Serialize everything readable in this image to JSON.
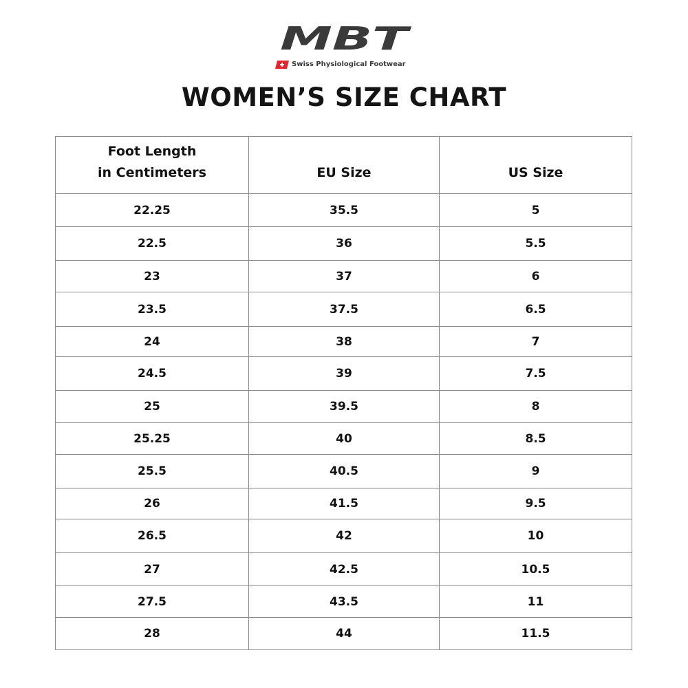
{
  "logo": {
    "brand": "MBT",
    "tagline": "Swiss Physiological Footwear",
    "colors": {
      "wordmark": "#3a3a3a",
      "flag": "#e3262b"
    }
  },
  "title": "WOMEN’S SIZE CHART",
  "table": {
    "headers": [
      "Foot Length\nin Centimeters",
      "EU Size",
      "US Size"
    ],
    "header_lines": [
      [
        "Foot Length",
        "in Centimeters"
      ],
      [
        "EU Size"
      ],
      [
        "US Size"
      ]
    ],
    "rows": [
      [
        "22.25",
        "35.5",
        "5"
      ],
      [
        "22.5",
        "36",
        "5.5"
      ],
      [
        "23",
        "37",
        "6"
      ],
      [
        "23.5",
        "37.5",
        "6.5"
      ],
      [
        "24",
        "38",
        "7"
      ],
      [
        "24.5",
        "39",
        "7.5"
      ],
      [
        "25",
        "39.5",
        "8"
      ],
      [
        "25.25",
        "40",
        "8.5"
      ],
      [
        "25.5",
        "40.5",
        "9"
      ],
      [
        "26",
        "41.5",
        "9.5"
      ],
      [
        "26.5",
        "42",
        "10"
      ],
      [
        "27",
        "42.5",
        "10.5"
      ],
      [
        "27.5",
        "43.5",
        "11"
      ],
      [
        "28",
        "44",
        "11.5"
      ]
    ]
  }
}
